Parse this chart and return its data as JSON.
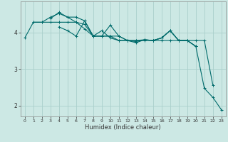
{
  "xlabel": "Humidex (Indice chaleur)",
  "bg_color": "#cce8e4",
  "grid_color": "#aacfcb",
  "line_color": "#006b6b",
  "xlim": [
    -0.5,
    23.5
  ],
  "ylim": [
    1.7,
    4.85
  ],
  "yticks": [
    2,
    3,
    4
  ],
  "xticks": [
    0,
    1,
    2,
    3,
    4,
    5,
    6,
    7,
    8,
    9,
    10,
    11,
    12,
    13,
    14,
    15,
    16,
    17,
    18,
    19,
    20,
    21,
    22,
    23
  ],
  "series": [
    [
      3.85,
      4.28,
      4.28,
      4.28,
      4.28,
      4.28,
      4.28,
      4.22,
      3.9,
      3.9,
      3.9,
      3.9,
      3.78,
      3.78,
      3.78,
      3.78,
      3.78,
      3.78,
      3.78,
      3.78,
      3.62,
      2.47,
      2.22,
      1.88
    ],
    [
      null,
      4.28,
      4.28,
      4.42,
      4.52,
      4.42,
      4.28,
      4.1,
      3.9,
      3.9,
      3.9,
      3.78,
      3.78,
      3.78,
      3.8,
      3.78,
      3.85,
      4.05,
      3.78,
      3.78,
      3.78,
      3.78,
      2.55,
      null
    ],
    [
      null,
      null,
      null,
      4.38,
      4.55,
      4.42,
      4.42,
      4.32,
      3.9,
      4.05,
      3.85,
      3.78,
      3.78,
      3.72,
      3.8,
      3.78,
      3.85,
      4.05,
      3.78,
      3.78,
      3.62,
      null,
      null,
      null
    ],
    [
      null,
      null,
      null,
      null,
      4.15,
      4.05,
      3.9,
      4.32,
      3.9,
      3.9,
      4.2,
      3.9,
      3.78,
      3.75,
      3.8,
      3.78,
      3.85,
      4.05,
      3.78,
      3.78,
      3.62,
      null,
      null,
      null
    ]
  ]
}
